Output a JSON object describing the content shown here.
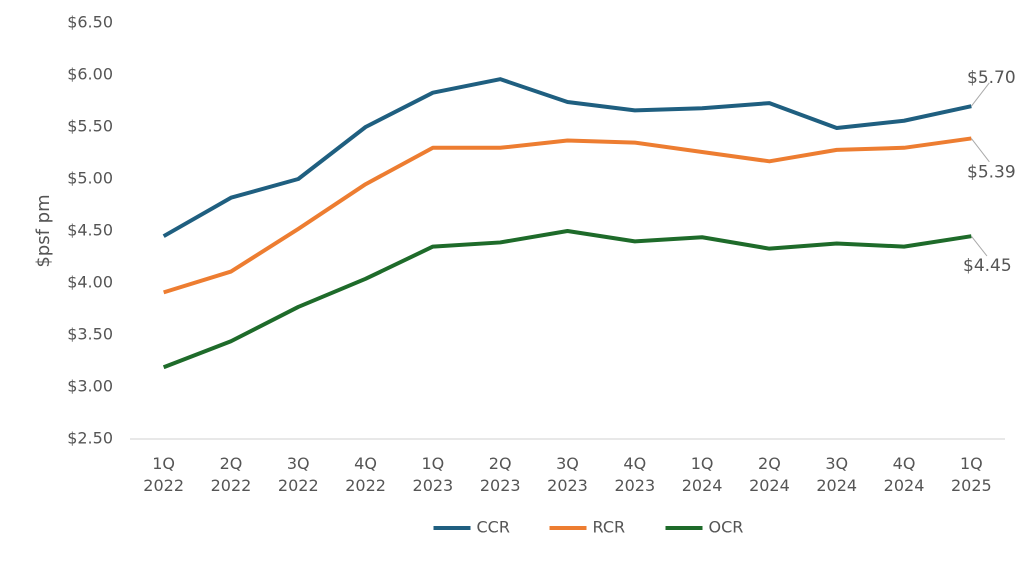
{
  "chart_data": {
    "type": "line",
    "ylabel": "$psf pm",
    "categories": [
      [
        "1Q",
        "2022"
      ],
      [
        "2Q",
        "2022"
      ],
      [
        "3Q",
        "2022"
      ],
      [
        "4Q",
        "2022"
      ],
      [
        "1Q",
        "2023"
      ],
      [
        "2Q",
        "2023"
      ],
      [
        "3Q",
        "2023"
      ],
      [
        "4Q",
        "2023"
      ],
      [
        "1Q",
        "2024"
      ],
      [
        "2Q",
        "2024"
      ],
      [
        "3Q",
        "2024"
      ],
      [
        "4Q",
        "2024"
      ],
      [
        "1Q",
        "2025"
      ]
    ],
    "series": [
      {
        "name": "CCR",
        "color": "#1f5f80",
        "values": [
          4.45,
          4.82,
          5.0,
          5.5,
          5.83,
          5.96,
          5.74,
          5.66,
          5.68,
          5.73,
          5.49,
          5.56,
          5.7
        ],
        "value_labels": [
          null,
          null,
          null,
          null,
          null,
          null,
          null,
          null,
          null,
          null,
          null,
          null,
          "$5.70"
        ]
      },
      {
        "name": "RCR",
        "color": "#ed7d31",
        "values": [
          3.91,
          4.11,
          4.52,
          4.95,
          5.3,
          5.3,
          5.37,
          5.35,
          5.26,
          5.17,
          5.28,
          5.3,
          5.39
        ],
        "value_labels": [
          null,
          null,
          null,
          null,
          null,
          null,
          null,
          null,
          null,
          null,
          null,
          null,
          "$5.39"
        ]
      },
      {
        "name": "OCR",
        "color": "#1e6b2a",
        "values": [
          3.19,
          3.44,
          3.77,
          4.04,
          4.35,
          4.39,
          4.5,
          4.4,
          4.44,
          4.33,
          4.38,
          4.35,
          4.45
        ],
        "value_labels": [
          null,
          null,
          null,
          null,
          null,
          null,
          null,
          null,
          null,
          null,
          null,
          null,
          "$4.45"
        ]
      }
    ],
    "ylim": [
      2.5,
      6.5
    ],
    "yticks": [
      {
        "value": 2.5,
        "label": "$2.50"
      },
      {
        "value": 3,
        "label": "$3.00"
      },
      {
        "value": 3.5,
        "label": "$3.50"
      },
      {
        "value": 4,
        "label": "$4.00"
      },
      {
        "value": 4.5,
        "label": "$4.50"
      },
      {
        "value": 5,
        "label": "$5.00"
      },
      {
        "value": 5.5,
        "label": "$5.50"
      },
      {
        "value": 6,
        "label": "$6.00"
      },
      {
        "value": 6.5,
        "label": "$6.50"
      }
    ],
    "grid": false,
    "legend": "bottom"
  }
}
